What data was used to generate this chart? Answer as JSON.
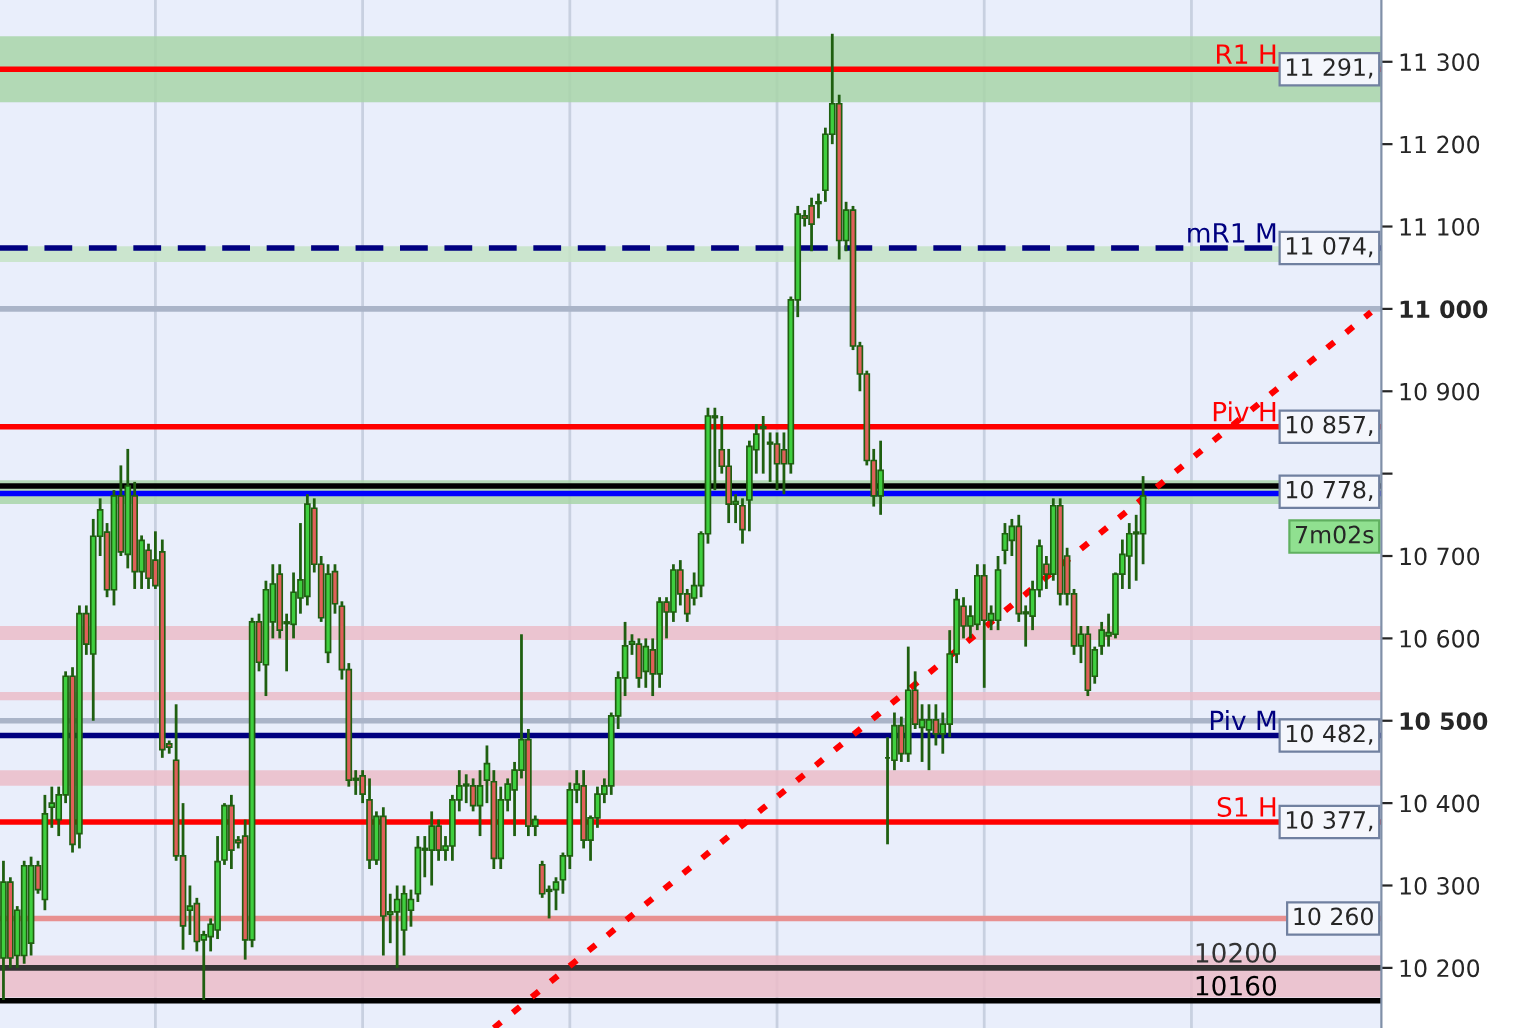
{
  "chart_data": {
    "type": "candlestick",
    "categories": [
      null,
      null,
      null,
      null,
      null,
      null,
      null,
      null,
      null,
      null,
      null,
      null,
      null,
      null,
      null,
      null,
      null,
      null,
      null,
      null,
      null,
      null,
      null,
      null,
      null,
      null,
      null,
      null,
      null,
      null,
      null,
      null,
      null,
      null,
      null,
      null,
      null,
      null,
      null,
      null,
      null,
      null,
      null,
      null,
      null,
      null,
      null,
      null,
      null,
      null,
      null,
      null,
      null,
      null,
      null,
      null,
      null,
      null,
      null,
      null,
      null,
      null,
      null,
      null,
      null,
      null,
      null,
      null,
      null,
      null,
      null,
      null,
      null,
      null,
      null,
      null,
      null,
      null,
      null,
      null,
      null,
      null,
      null,
      null,
      null,
      null,
      null,
      null,
      null,
      null,
      null,
      null,
      null,
      null,
      null,
      null,
      null,
      null,
      null,
      null,
      null,
      null,
      null,
      null,
      null,
      null,
      null,
      null,
      null,
      null,
      null,
      null,
      null,
      null,
      null,
      null,
      null,
      null,
      null,
      null,
      null,
      null,
      null,
      null,
      null,
      null,
      null,
      null,
      null,
      null,
      null,
      null,
      null,
      null,
      null,
      null,
      null,
      null,
      null,
      null,
      null,
      null,
      null,
      null,
      null,
      null,
      null,
      null,
      null,
      null,
      null,
      null,
      null,
      null,
      null,
      null,
      null,
      null,
      null,
      null,
      null,
      null,
      null,
      null,
      null,
      null,
      null,
      null,
      null,
      null,
      null,
      null,
      null,
      null,
      null,
      null,
      null,
      null,
      null,
      null,
      null,
      null,
      null,
      null,
      null,
      null,
      null,
      null,
      null,
      null,
      null,
      null,
      null,
      null,
      null,
      null,
      null,
      null,
      null,
      null
    ],
    "ohlc": [
      [
        10212,
        10330,
        10161,
        10304
      ],
      [
        10304,
        10310,
        10200,
        10212
      ],
      [
        10215,
        10275,
        10200,
        10270
      ],
      [
        10215,
        10330,
        10205,
        10324
      ],
      [
        10230,
        10335,
        10215,
        10324
      ],
      [
        10324,
        10330,
        10290,
        10295
      ],
      [
        10283,
        10410,
        10270,
        10387
      ],
      [
        10395,
        10420,
        10370,
        10400
      ],
      [
        10380,
        10420,
        10360,
        10410
      ],
      [
        10410,
        10560,
        10400,
        10554
      ],
      [
        10554,
        10565,
        10340,
        10350
      ],
      [
        10363,
        10640,
        10345,
        10630
      ],
      [
        10630,
        10640,
        10580,
        10593
      ],
      [
        10581,
        10745,
        10500,
        10724
      ],
      [
        10724,
        10770,
        10700,
        10756
      ],
      [
        10729,
        10740,
        10650,
        10659
      ],
      [
        10659,
        10780,
        10640,
        10773
      ],
      [
        10773,
        10810,
        10700,
        10705
      ],
      [
        10702,
        10830,
        10685,
        10785
      ],
      [
        10773,
        10790,
        10660,
        10681
      ],
      [
        10681,
        10725,
        10660,
        10719
      ],
      [
        10707,
        10715,
        10660,
        10673
      ],
      [
        10695,
        10730,
        10660,
        10664
      ],
      [
        10705,
        10720,
        10455,
        10465
      ],
      [
        10472,
        10476,
        10460,
        10468
      ],
      [
        10452,
        10520,
        10330,
        10336
      ],
      [
        10336,
        10400,
        10222,
        10251
      ],
      [
        10270,
        10300,
        10240,
        10275
      ],
      [
        10278,
        10285,
        10220,
        10232
      ],
      [
        10234,
        10245,
        10161,
        10240
      ],
      [
        10238,
        10260,
        10220,
        10253
      ],
      [
        10246,
        10360,
        10235,
        10329
      ],
      [
        10331,
        10400,
        10325,
        10397
      ],
      [
        10397,
        10410,
        10320,
        10343
      ],
      [
        10355,
        10360,
        10345,
        10352
      ],
      [
        10360,
        10380,
        10210,
        10234
      ],
      [
        10234,
        10625,
        10225,
        10620
      ],
      [
        10620,
        10630,
        10560,
        10571
      ],
      [
        10568,
        10670,
        10530,
        10659
      ],
      [
        10620,
        10690,
        10600,
        10666
      ],
      [
        10678,
        10690,
        10600,
        10610
      ],
      [
        10620,
        10630,
        10560,
        10618
      ],
      [
        10617,
        10680,
        10600,
        10656
      ],
      [
        10649,
        10740,
        10630,
        10671
      ],
      [
        10651,
        10775,
        10640,
        10763
      ],
      [
        10758,
        10770,
        10680,
        10690
      ],
      [
        10690,
        10700,
        10620,
        10625
      ],
      [
        10583,
        10690,
        10570,
        10678
      ],
      [
        10681,
        10690,
        10630,
        10642
      ],
      [
        10639,
        10645,
        10550,
        10562
      ],
      [
        10562,
        10570,
        10420,
        10428
      ],
      [
        10428,
        10440,
        10410,
        10430
      ],
      [
        10433,
        10440,
        10400,
        10411
      ],
      [
        10404,
        10430,
        10320,
        10331
      ],
      [
        10331,
        10390,
        10325,
        10384
      ],
      [
        10384,
        10395,
        10215,
        10263
      ],
      [
        10265,
        10290,
        10230,
        10268
      ],
      [
        10268,
        10300,
        10200,
        10283
      ],
      [
        10246,
        10300,
        10215,
        10290
      ],
      [
        10270,
        10295,
        10250,
        10283
      ],
      [
        10290,
        10360,
        10280,
        10346
      ],
      [
        10343,
        10360,
        10310,
        10345
      ],
      [
        10343,
        10390,
        10300,
        10372
      ],
      [
        10372,
        10380,
        10330,
        10343
      ],
      [
        10343,
        10360,
        10330,
        10348
      ],
      [
        10348,
        10410,
        10330,
        10404
      ],
      [
        10404,
        10440,
        10390,
        10421
      ],
      [
        10421,
        10435,
        10400,
        10423
      ],
      [
        10421,
        10430,
        10390,
        10397
      ],
      [
        10397,
        10440,
        10360,
        10421
      ],
      [
        10428,
        10470,
        10400,
        10448
      ],
      [
        10426,
        10440,
        10320,
        10333
      ],
      [
        10333,
        10420,
        10320,
        10404
      ],
      [
        10404,
        10430,
        10390,
        10423
      ],
      [
        10416,
        10450,
        10360,
        10440
      ],
      [
        10440,
        10605,
        10430,
        10477
      ],
      [
        10477,
        10490,
        10360,
        10372
      ],
      [
        10372,
        10385,
        10360,
        10380
      ],
      [
        10325,
        10330,
        10285,
        10290
      ],
      [
        10295,
        10300,
        10260,
        10293
      ],
      [
        10295,
        10310,
        10270,
        10304
      ],
      [
        10307,
        10340,
        10290,
        10336
      ],
      [
        10336,
        10425,
        10320,
        10416
      ],
      [
        10416,
        10440,
        10400,
        10423
      ],
      [
        10421,
        10440,
        10345,
        10355
      ],
      [
        10355,
        10385,
        10330,
        10382
      ],
      [
        10382,
        10420,
        10370,
        10411
      ],
      [
        10411,
        10430,
        10400,
        10421
      ],
      [
        10421,
        10510,
        10410,
        10506
      ],
      [
        10506,
        10560,
        10490,
        10552
      ],
      [
        10552,
        10620,
        10530,
        10591
      ],
      [
        10593,
        10605,
        10580,
        10596
      ],
      [
        10593,
        10600,
        10540,
        10552
      ],
      [
        10560,
        10600,
        10540,
        10590
      ],
      [
        10586,
        10600,
        10530,
        10557
      ],
      [
        10557,
        10650,
        10540,
        10644
      ],
      [
        10644,
        10650,
        10600,
        10632
      ],
      [
        10632,
        10690,
        10620,
        10683
      ],
      [
        10683,
        10695,
        10640,
        10654
      ],
      [
        10654,
        10660,
        10620,
        10630
      ],
      [
        10649,
        10680,
        10640,
        10664
      ],
      [
        10664,
        10730,
        10650,
        10727
      ],
      [
        10727,
        10880,
        10715,
        10870
      ],
      [
        10870,
        10880,
        10780,
        10868
      ],
      [
        10829,
        10870,
        10800,
        10809
      ],
      [
        10809,
        10830,
        10740,
        10763
      ],
      [
        10763,
        10775,
        10740,
        10766
      ],
      [
        10761,
        10770,
        10715,
        10732
      ],
      [
        10768,
        10840,
        10730,
        10833
      ],
      [
        10829,
        10860,
        10800,
        10848
      ],
      [
        10855,
        10870,
        10800,
        10857
      ],
      [
        10836,
        10850,
        10790,
        10838
      ],
      [
        10836,
        10850,
        10780,
        10812
      ],
      [
        10829,
        10850,
        10775,
        10812
      ],
      [
        10812,
        11015,
        10800,
        11011
      ],
      [
        11011,
        11125,
        10990,
        11115
      ],
      [
        11113,
        11120,
        11100,
        11110
      ],
      [
        11125,
        11135,
        11070,
        11103
      ],
      [
        11128,
        11140,
        11110,
        11130
      ],
      [
        11144,
        11220,
        11130,
        11212
      ],
      [
        11212,
        11334,
        11200,
        11249
      ],
      [
        11249,
        11260,
        11060,
        11083
      ],
      [
        11083,
        11130,
        11070,
        11120
      ],
      [
        11120,
        11125,
        10950,
        10955
      ],
      [
        10955,
        10960,
        10900,
        10921
      ],
      [
        10921,
        10925,
        10810,
        10816
      ],
      [
        10816,
        10830,
        10760,
        10773
      ],
      [
        10773,
        10840,
        10750,
        10804
      ],
      [
        10455,
        10480,
        10350,
        10455
      ],
      [
        10452,
        10510,
        10440,
        10494
      ],
      [
        10494,
        10505,
        10450,
        10460
      ],
      [
        10460,
        10590,
        10450,
        10537
      ],
      [
        10537,
        10560,
        10490,
        10496
      ],
      [
        10492,
        10520,
        10450,
        10501
      ],
      [
        10489,
        10520,
        10440,
        10501
      ],
      [
        10501,
        10520,
        10470,
        10484
      ],
      [
        10484,
        10510,
        10460,
        10496
      ],
      [
        10496,
        10610,
        10480,
        10581
      ],
      [
        10581,
        10660,
        10570,
        10647
      ],
      [
        10639,
        10650,
        10600,
        10615
      ],
      [
        10615,
        10640,
        10600,
        10627
      ],
      [
        10617,
        10690,
        10610,
        10676
      ],
      [
        10676,
        10690,
        10540,
        10622
      ],
      [
        10622,
        10640,
        10610,
        10630
      ],
      [
        10622,
        10700,
        10610,
        10683
      ],
      [
        10707,
        10740,
        10690,
        10727
      ],
      [
        10719,
        10745,
        10700,
        10736
      ],
      [
        10736,
        10750,
        10620,
        10630
      ],
      [
        10630,
        10640,
        10590,
        10632
      ],
      [
        10627,
        10670,
        10610,
        10659
      ],
      [
        10659,
        10720,
        10650,
        10712
      ],
      [
        10690,
        10700,
        10660,
        10678
      ],
      [
        10678,
        10770,
        10670,
        10761
      ],
      [
        10761,
        10770,
        10640,
        10654
      ],
      [
        10700,
        10710,
        10640,
        10654
      ],
      [
        10654,
        10660,
        10580,
        10591
      ],
      [
        10591,
        10615,
        10570,
        10605
      ],
      [
        10605,
        10615,
        10530,
        10537
      ],
      [
        10554,
        10590,
        10545,
        10586
      ],
      [
        10591,
        10620,
        10580,
        10610
      ],
      [
        10603,
        10630,
        10590,
        10607
      ],
      [
        10605,
        10680,
        10600,
        10678
      ],
      [
        10678,
        10720,
        10660,
        10702
      ],
      [
        10700,
        10740,
        10660,
        10727
      ],
      [
        10727,
        10750,
        10670,
        10729
      ],
      [
        10727,
        10797,
        10690,
        10773
      ],
      null,
      null,
      null,
      null,
      null,
      null,
      null,
      null,
      null,
      null,
      null,
      null,
      null,
      null,
      null,
      null,
      null,
      null,
      null,
      null,
      null,
      null,
      null,
      null,
      null,
      null,
      null,
      null,
      null,
      null,
      null,
      null,
      null,
      null
    ],
    "series": [
      {
        "type": "line",
        "color": "#ff0000",
        "line_style": "dotted",
        "values": [
          null,
          null,
          null,
          null,
          null,
          null,
          null,
          null,
          null,
          null,
          null,
          null,
          null,
          null,
          null,
          null,
          null,
          null,
          null,
          null,
          null,
          null,
          null,
          null,
          null,
          null,
          null,
          null,
          null,
          null,
          null,
          null,
          null,
          null,
          null,
          null,
          null,
          null,
          null,
          null,
          null,
          null,
          null,
          null,
          null,
          null,
          null,
          null,
          null,
          null,
          null,
          null,
          null,
          null,
          null,
          null,
          null,
          null,
          null,
          null,
          null,
          null,
          null,
          null,
          null,
          null,
          null,
          null,
          null,
          null,
          null,
          10127,
          null,
          null,
          null,
          null,
          null,
          null,
          null,
          null,
          null,
          null,
          null,
          null,
          null,
          null,
          null,
          null,
          null,
          null,
          null,
          null,
          null,
          null,
          null,
          null,
          null,
          null,
          null,
          null,
          null,
          null,
          null,
          null,
          null,
          null,
          null,
          null,
          null,
          null,
          null,
          null,
          null,
          null,
          null,
          null,
          null,
          null,
          null,
          null,
          null,
          null,
          null,
          null,
          null,
          null,
          null,
          null,
          null,
          null,
          null,
          null,
          null,
          null,
          null,
          null,
          null,
          null,
          null,
          null,
          null,
          null,
          null,
          null,
          null,
          null,
          null,
          null,
          null,
          null,
          null,
          null,
          null,
          null,
          null,
          null,
          null,
          null,
          null,
          null,
          null,
          null,
          null,
          null,
          null,
          null,
          null,
          null,
          null,
          null,
          null,
          null,
          null,
          null,
          null,
          null,
          null,
          null,
          null,
          null,
          null,
          null,
          null,
          null,
          null,
          null,
          null,
          null,
          null,
          null,
          null,
          null,
          null,
          null,
          null,
          null,
          null,
          null,
          10996,
          null
        ]
      }
    ],
    "ylim": [
      10127,
      11375
    ],
    "yticks": [
      {
        "value": 10200,
        "label": "10 200"
      },
      {
        "value": 10300,
        "label": "10 300"
      },
      {
        "value": 10400,
        "label": "10 400"
      },
      {
        "value": 10500,
        "label": "10 500"
      },
      {
        "value": 10600,
        "label": "10 600"
      },
      {
        "value": 10700,
        "label": "10 700"
      },
      {
        "value": 10800,
        "label": null
      },
      {
        "value": 10900,
        "label": "10 900"
      },
      {
        "value": 11000,
        "label": "11 000"
      },
      {
        "value": 11100,
        "label": "11 100"
      },
      {
        "value": 11200,
        "label": "11 200"
      },
      {
        "value": 11300,
        "label": "11 300"
      }
    ],
    "tick_labels": "y",
    "bands": [
      {
        "axis": "y",
        "from": 11251,
        "to": 11331,
        "color": "#a8d5a8"
      },
      {
        "axis": "y",
        "from": 11057,
        "to": 11076,
        "color": "#c5e3c5"
      },
      {
        "axis": "y",
        "from": 10763,
        "to": 10792,
        "color": "#a8d5a8"
      },
      {
        "axis": "y",
        "from": 10598,
        "to": 10615,
        "color": "#ebbcc8"
      },
      {
        "axis": "y",
        "from": 10525,
        "to": 10535,
        "color": "#ebbcc8"
      },
      {
        "axis": "y",
        "from": 10421,
        "to": 10440,
        "color": "#ebbcc8"
      },
      {
        "axis": "y",
        "from": 10164,
        "to": 10215,
        "color": "#ebbcc8"
      }
    ],
    "ref_lines": [
      {
        "axis": "y",
        "value": 11000,
        "label": null,
        "color": "#aab4c8"
      },
      {
        "axis": "y",
        "value": 10500,
        "label": null,
        "color": "#aab4c8"
      },
      {
        "axis": "y",
        "value": 11291,
        "label": "R1 H",
        "color": "#ff0000"
      },
      {
        "axis": "y",
        "value": 11074,
        "label": "mR1 M",
        "color": "#000080",
        "line_style": "dashed"
      },
      {
        "axis": "y",
        "value": 10857,
        "label": "Piv H",
        "color": "#ff0000"
      },
      {
        "axis": "y",
        "value": 10785,
        "label": null,
        "color": "#000000"
      },
      {
        "axis": "y",
        "value": 10776,
        "label": null,
        "color": "#0000ff"
      },
      {
        "axis": "y",
        "value": 10482,
        "label": "Piv M",
        "color": "#000080"
      },
      {
        "axis": "y",
        "value": 10377,
        "label": "S1 H",
        "color": "#ff0000"
      },
      {
        "axis": "y",
        "value": 10260,
        "label": null,
        "color": "#e89090"
      },
      {
        "axis": "y",
        "value": 10200,
        "label": "10200",
        "color": "#333333"
      },
      {
        "axis": "y",
        "value": 10160,
        "label": "10160",
        "color": "#000000"
      }
    ],
    "annotations": [
      {
        "text": "11 291,",
        "y": 11291
      },
      {
        "text": "11 074,",
        "y": 11074
      },
      {
        "text": "10 857,",
        "y": 10857
      },
      {
        "text": "10 778,",
        "y": 10778
      },
      "7m02s",
      {
        "text": "10 482,",
        "y": 10482
      },
      {
        "text": "10 377,",
        "y": 10377
      },
      {
        "text": "10 260",
        "y": 10260
      }
    ]
  }
}
